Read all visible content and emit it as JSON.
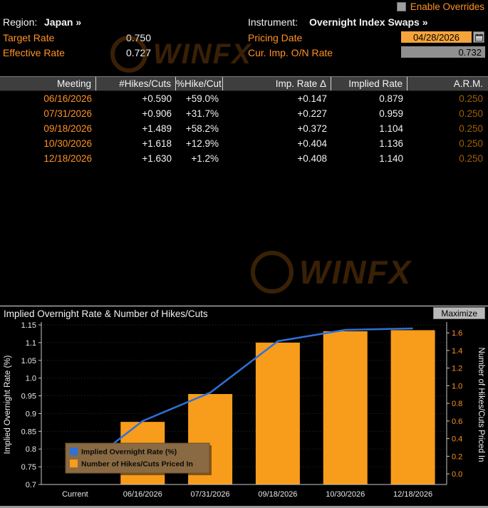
{
  "top_bar": {
    "enable_overrides_label": "Enable Overrides"
  },
  "header": {
    "region_label": "Region:",
    "region_value": "Japan »",
    "instrument_label": "Instrument:",
    "instrument_value": "Overnight Index Swaps »",
    "target_rate_label": "Target Rate",
    "target_rate_value": "0.750",
    "pricing_date_label": "Pricing Date",
    "pricing_date_value": "04/28/2026",
    "effective_rate_label": "Effective Rate",
    "effective_rate_value": "0.727",
    "cur_imp_on_rate_label": "Cur. Imp. O/N Rate",
    "cur_imp_on_rate_value": "0.732"
  },
  "table": {
    "columns": [
      "Meeting",
      "#Hikes/Cuts",
      "%Hike/Cut",
      "Imp. Rate Δ",
      "Implied Rate",
      "A.R.M."
    ],
    "rows": [
      [
        "06/16/2026",
        "+0.590",
        "+59.0%",
        "+0.147",
        "0.879",
        "0.250"
      ],
      [
        "07/31/2026",
        "+0.906",
        "+31.7%",
        "+0.227",
        "0.959",
        "0.250"
      ],
      [
        "09/18/2026",
        "+1.489",
        "+58.2%",
        "+0.372",
        "1.104",
        "0.250"
      ],
      [
        "10/30/2026",
        "+1.618",
        "+12.9%",
        "+0.404",
        "1.136",
        "0.250"
      ],
      [
        "12/18/2026",
        "+1.630",
        "+1.2%",
        "+0.408",
        "1.140",
        "0.250"
      ]
    ]
  },
  "chart": {
    "title": "Implied Overnight Rate & Number of Hikes/Cuts",
    "maximize_label": "Maximize"
  },
  "chart_data": {
    "type": "bar+line",
    "title": "Implied Overnight Rate & Number of Hikes/Cuts",
    "categories": [
      "Current",
      "06/16/2026",
      "07/31/2026",
      "09/18/2026",
      "10/30/2026",
      "12/18/2026"
    ],
    "series": [
      {
        "name": "Implied Overnight Rate (%)",
        "type": "line",
        "axis": "left",
        "color": "#2e71d9",
        "values": [
          0.732,
          0.879,
          0.959,
          1.104,
          1.136,
          1.14
        ]
      },
      {
        "name": "Number of Hikes/Cuts Priced In",
        "type": "bar",
        "axis": "right",
        "color": "#f79c1b",
        "values": [
          null,
          0.59,
          0.906,
          1.489,
          1.618,
          1.63
        ]
      }
    ],
    "left_axis": {
      "label": "Implied Overnight Rate (%)",
      "min": 0.7,
      "max": 1.15,
      "tick_labels": [
        "1.15",
        "1.1",
        "1.05",
        "1.0",
        "0.95",
        "0.9",
        "0.85",
        "0.8",
        "0.75",
        "0.7"
      ]
    },
    "right_axis": {
      "label": "Number of Hikes/Cuts Priced In",
      "min": -0.12,
      "max": 1.69,
      "tick_labels": [
        "1.6",
        "1.4",
        "1.2",
        "1.0",
        "0.8",
        "0.6",
        "0.4",
        "0.2",
        "0.0"
      ]
    },
    "legend_position": "bottom-left",
    "grid": "dotted-horizontal"
  },
  "watermark": {
    "text": "WINFX"
  },
  "colors": {
    "amber": "#ff9123",
    "amber_dim": "#a15f05",
    "line_blue": "#2e71d9",
    "bar_orange": "#f79c1b",
    "field_amber_bg": "#f5a43b",
    "field_gray_bg": "#8f8f8f",
    "legend_bg": "#8a6a43"
  }
}
